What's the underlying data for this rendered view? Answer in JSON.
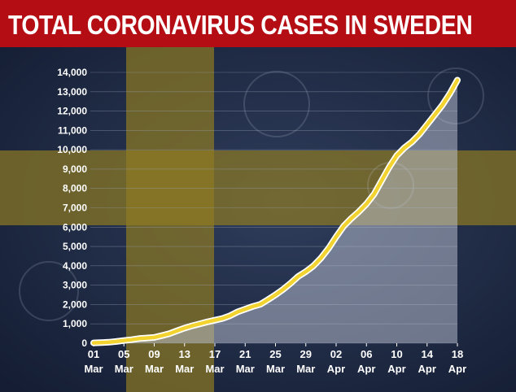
{
  "header": {
    "title": "TOTAL CORONAVIRUS CASES IN SWEDEN"
  },
  "colors": {
    "title_bar": "#b50d14",
    "background": "#1d2a45",
    "flag_yellow": "#8f7a22",
    "line": "#f3d330",
    "line_outline": "#ffffff",
    "area_fill": "#bfc6d6"
  },
  "chart_data": {
    "type": "area",
    "title": "TOTAL CORONAVIRUS CASES IN SWEDEN",
    "xlabel": "",
    "ylabel": "",
    "ylim": [
      0,
      14000
    ],
    "yticks": [
      "0",
      "1,000",
      "2,000",
      "3,000",
      "4,000",
      "5,000",
      "6,000",
      "7,000",
      "8,000",
      "9,000",
      "10,000",
      "11,000",
      "12,000",
      "13,000",
      "14,000"
    ],
    "xtick_labels": [
      {
        "day": "01",
        "month": "Mar"
      },
      {
        "day": "05",
        "month": "Mar"
      },
      {
        "day": "09",
        "month": "Mar"
      },
      {
        "day": "13",
        "month": "Mar"
      },
      {
        "day": "17",
        "month": "Mar"
      },
      {
        "day": "21",
        "month": "Mar"
      },
      {
        "day": "25",
        "month": "Mar"
      },
      {
        "day": "29",
        "month": "Mar"
      },
      {
        "day": "02",
        "month": "Apr"
      },
      {
        "day": "06",
        "month": "Apr"
      },
      {
        "day": "10",
        "month": "Apr"
      },
      {
        "day": "14",
        "month": "Apr"
      },
      {
        "day": "18",
        "month": "Apr"
      }
    ],
    "grid": true,
    "legend": "none",
    "series": [
      {
        "x": [
          "01 Mar",
          "02 Mar",
          "03 Mar",
          "04 Mar",
          "05 Mar",
          "06 Mar",
          "07 Mar",
          "08 Mar",
          "09 Mar",
          "10 Mar",
          "11 Mar",
          "12 Mar",
          "13 Mar",
          "14 Mar",
          "15 Mar",
          "16 Mar",
          "17 Mar",
          "18 Mar",
          "19 Mar",
          "20 Mar",
          "21 Mar",
          "22 Mar",
          "23 Mar",
          "24 Mar",
          "25 Mar",
          "26 Mar",
          "27 Mar",
          "28 Mar",
          "29 Mar",
          "30 Mar",
          "31 Mar",
          "01 Apr",
          "02 Apr",
          "03 Apr",
          "04 Apr",
          "05 Apr",
          "06 Apr",
          "07 Apr",
          "08 Apr",
          "09 Apr",
          "10 Apr",
          "11 Apr",
          "12 Apr",
          "13 Apr",
          "14 Apr",
          "15 Apr",
          "16 Apr",
          "17 Apr",
          "18 Apr"
        ],
        "values": [
          15,
          30,
          50,
          90,
          140,
          180,
          240,
          270,
          300,
          390,
          490,
          640,
          780,
          900,
          1000,
          1100,
          1190,
          1280,
          1420,
          1620,
          1760,
          1900,
          2010,
          2250,
          2500,
          2780,
          3100,
          3450,
          3700,
          4000,
          4400,
          4900,
          5500,
          6050,
          6450,
          6800,
          7200,
          7700,
          8400,
          9100,
          9700,
          10100,
          10400,
          10800,
          11300,
          11800,
          12300,
          12900,
          13600
        ]
      }
    ]
  }
}
